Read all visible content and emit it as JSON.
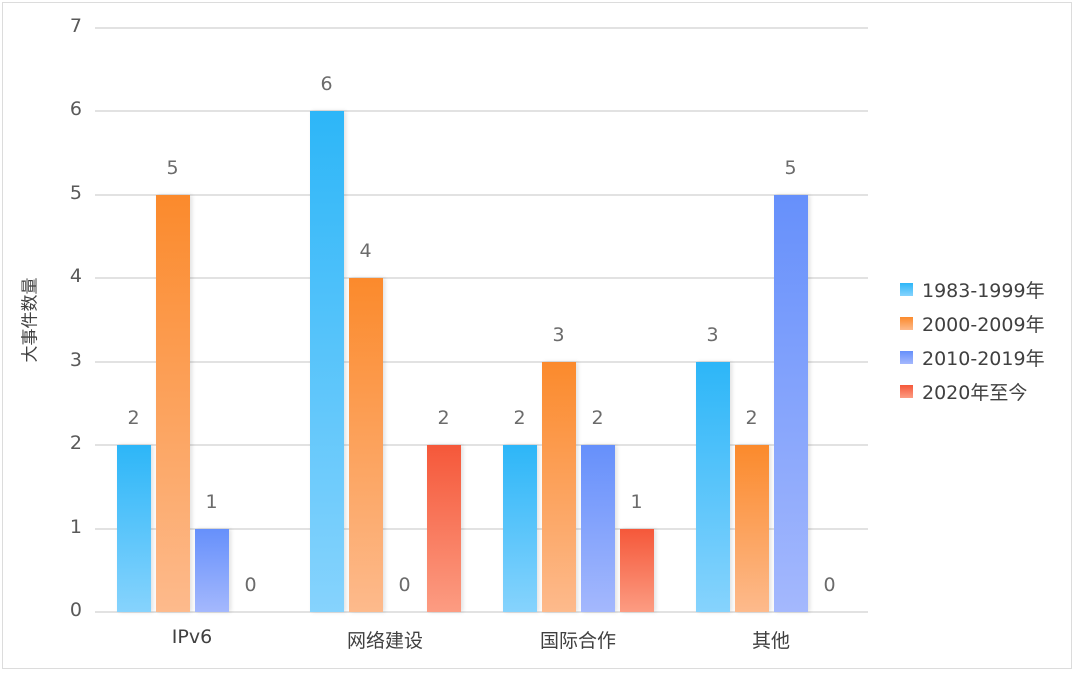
{
  "chart_data": {
    "type": "bar",
    "title": "",
    "xlabel": "",
    "ylabel": "大事件数量",
    "ylim": [
      0,
      7
    ],
    "yticks": [
      "0",
      "1",
      "2",
      "3",
      "4",
      "5",
      "6",
      "7"
    ],
    "grid": true,
    "legend_position": "right",
    "categories": [
      "IPv6",
      "网络建设",
      "国际合作",
      "其他"
    ],
    "series": [
      {
        "name": "1983-1999年",
        "color": "#2db6f8",
        "values": [
          2,
          6,
          2,
          3
        ]
      },
      {
        "name": "2000-2009年",
        "color": "#fb8a2c",
        "values": [
          5,
          4,
          3,
          2
        ]
      },
      {
        "name": "2010-2019年",
        "color": "#6690fb",
        "values": [
          1,
          0,
          2,
          5
        ]
      },
      {
        "name": "2020年至今",
        "color": "#f5583a",
        "values": [
          0,
          2,
          1,
          0
        ]
      }
    ]
  }
}
